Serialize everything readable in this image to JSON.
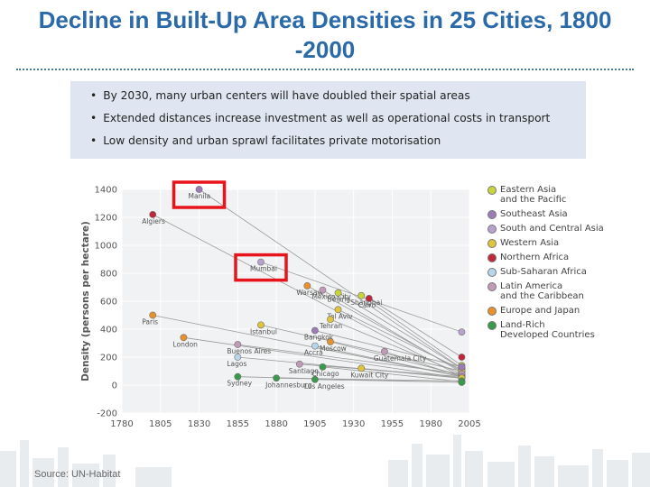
{
  "title_line1": "Decline in Built-Up Area Densities in 25 Cities, 1800",
  "title_line2": "-2000",
  "bullets": [
    "By 2030, many urban centers will have doubled their spatial areas",
    "Extended distances increase investment as well as operational costs in transport",
    "Low density and urban sprawl facilitates private motorisation"
  ],
  "source": "Source: UN-Habitat",
  "highlight_color": "#e8141b",
  "chart_data": {
    "type": "line",
    "ylabel": "Density (persons per hectare)",
    "xlabel": "",
    "xlim": [
      1780,
      2005
    ],
    "ylim": [
      -200,
      1400
    ],
    "xticks": [
      1780,
      1805,
      1830,
      1855,
      1880,
      1905,
      1930,
      1955,
      1980,
      2005
    ],
    "yticks": [
      -200,
      0,
      200,
      400,
      600,
      800,
      1000,
      1200,
      1400
    ],
    "grid": true,
    "legend_position": "right",
    "legend": [
      {
        "lines": [
          "Eastern Asia",
          "and the Pacific"
        ],
        "color": "#c8d43a"
      },
      {
        "lines": [
          "Southeast Asia"
        ],
        "color": "#9c7bb6"
      },
      {
        "lines": [
          "South and Central Asia"
        ],
        "color": "#b7a1cf"
      },
      {
        "lines": [
          "Western Asia"
        ],
        "color": "#e0c43a"
      },
      {
        "lines": [
          "Northern Africa"
        ],
        "color": "#c0273a"
      },
      {
        "lines": [
          "Sub-Saharan Africa"
        ],
        "color": "#b9d5ea"
      },
      {
        "lines": [
          "Latin America",
          "and the Caribbean"
        ],
        "color": "#c19ab7"
      },
      {
        "lines": [
          "Europe and Japan"
        ],
        "color": "#e8912b"
      },
      {
        "lines": [
          "Land-Rich",
          "Developed Countries"
        ],
        "color": "#3a9a4c"
      }
    ],
    "highlighted": [
      "Manila",
      "Mumbai"
    ],
    "cities": [
      {
        "name": "Manila",
        "x": [
          1830,
          2000
        ],
        "y": [
          1400,
          120
        ],
        "color": "#9c7bb6"
      },
      {
        "name": "Algiers",
        "x": [
          1800,
          2000
        ],
        "y": [
          1220,
          60
        ],
        "color": "#c0273a"
      },
      {
        "name": "Mumbai",
        "x": [
          1870,
          2000
        ],
        "y": [
          880,
          380
        ],
        "color": "#b7a1cf"
      },
      {
        "name": "Warsaw",
        "x": [
          1900,
          2000
        ],
        "y": [
          710,
          100
        ],
        "color": "#e8912b"
      },
      {
        "name": "Mexico City",
        "x": [
          1910,
          2000
        ],
        "y": [
          680,
          90
        ],
        "color": "#c19ab7"
      },
      {
        "name": "Beijing",
        "x": [
          1920,
          2000
        ],
        "y": [
          660,
          120
        ],
        "color": "#c8d43a"
      },
      {
        "name": "Shanghai",
        "x": [
          1935,
          2000
        ],
        "y": [
          640,
          140
        ],
        "color": "#c8d43a"
      },
      {
        "name": "Cairo",
        "x": [
          1940,
          2000
        ],
        "y": [
          620,
          200
        ],
        "color": "#c0273a"
      },
      {
        "name": "Paris",
        "x": [
          1800,
          2000
        ],
        "y": [
          500,
          60
        ],
        "color": "#e8912b"
      },
      {
        "name": "Tel Aviv",
        "x": [
          1920,
          2000
        ],
        "y": [
          540,
          110
        ],
        "color": "#e0c43a"
      },
      {
        "name": "Istanbul",
        "x": [
          1870,
          2000
        ],
        "y": [
          430,
          100
        ],
        "color": "#e0c43a"
      },
      {
        "name": "Tehran",
        "x": [
          1915,
          2000
        ],
        "y": [
          470,
          80
        ],
        "color": "#e0c43a"
      },
      {
        "name": "Bangkok",
        "x": [
          1905,
          2000
        ],
        "y": [
          390,
          130
        ],
        "color": "#9c7bb6"
      },
      {
        "name": "London",
        "x": [
          1820,
          2000
        ],
        "y": [
          340,
          50
        ],
        "color": "#e8912b"
      },
      {
        "name": "Moscow",
        "x": [
          1915,
          2000
        ],
        "y": [
          310,
          70
        ],
        "color": "#e8912b"
      },
      {
        "name": "Buenos Aires",
        "x": [
          1855,
          2000
        ],
        "y": [
          290,
          80
        ],
        "color": "#c19ab7"
      },
      {
        "name": "Accra",
        "x": [
          1905,
          2000
        ],
        "y": [
          280,
          60
        ],
        "color": "#b9d5ea"
      },
      {
        "name": "Guatemala City",
        "x": [
          1950,
          2000
        ],
        "y": [
          240,
          60
        ],
        "color": "#c19ab7"
      },
      {
        "name": "Lagos",
        "x": [
          1855,
          2000
        ],
        "y": [
          200,
          50
        ],
        "color": "#b9d5ea"
      },
      {
        "name": "Santiago",
        "x": [
          1895,
          2000
        ],
        "y": [
          150,
          60
        ],
        "color": "#c19ab7"
      },
      {
        "name": "Chicago",
        "x": [
          1910,
          2000
        ],
        "y": [
          130,
          25
        ],
        "color": "#3a9a4c"
      },
      {
        "name": "Kuwait City",
        "x": [
          1935,
          2000
        ],
        "y": [
          120,
          50
        ],
        "color": "#e0c43a"
      },
      {
        "name": "Sydney",
        "x": [
          1855,
          2000
        ],
        "y": [
          60,
          20
        ],
        "color": "#3a9a4c"
      },
      {
        "name": "Johannesburg",
        "x": [
          1880,
          2000
        ],
        "y": [
          50,
          30
        ],
        "color": "#3a9a4c"
      },
      {
        "name": "Los Angeles",
        "x": [
          1905,
          2000
        ],
        "y": [
          40,
          20
        ],
        "color": "#3a9a4c"
      }
    ]
  }
}
